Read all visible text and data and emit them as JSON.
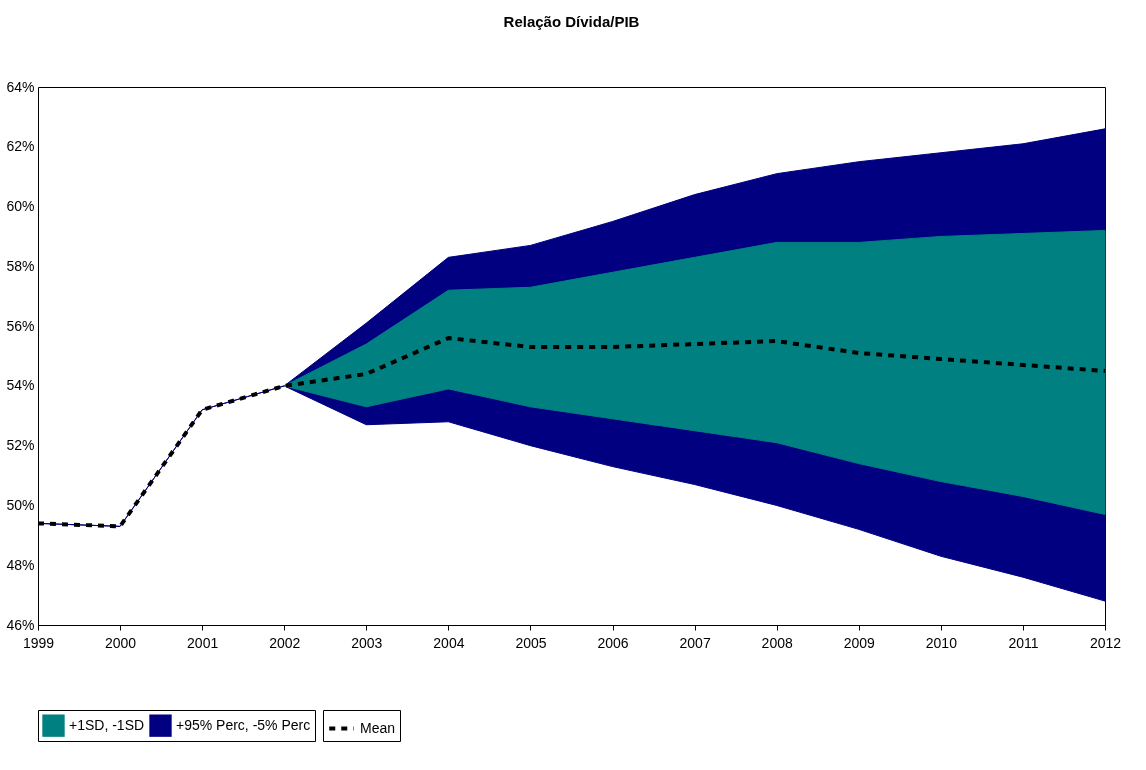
{
  "chart_data": {
    "type": "line",
    "title": "Relação Dívida/PIB",
    "x": [
      1999,
      2000,
      2001,
      2002,
      2003,
      2004,
      2005,
      2006,
      2007,
      2008,
      2009,
      2010,
      2011,
      2012
    ],
    "xlim": [
      1999,
      2012
    ],
    "xticks": [
      1999,
      2000,
      2001,
      2002,
      2003,
      2004,
      2005,
      2006,
      2007,
      2008,
      2009,
      2010,
      2011,
      2012
    ],
    "ylim": [
      46,
      64
    ],
    "yticks": [
      {
        "value": 46,
        "label": "46%"
      },
      {
        "value": 48,
        "label": "48%"
      },
      {
        "value": 50,
        "label": "50%"
      },
      {
        "value": 52,
        "label": "52%"
      },
      {
        "value": 54,
        "label": "54%"
      },
      {
        "value": 56,
        "label": "56%"
      },
      {
        "value": 58,
        "label": "58%"
      },
      {
        "value": 60,
        "label": "60%"
      },
      {
        "value": 62,
        "label": "62%"
      },
      {
        "value": 64,
        "label": "64%"
      }
    ],
    "series": [
      {
        "name": "+95% Perc, -5% Perc",
        "type": "area",
        "color": "#000080",
        "values": [
          null,
          null,
          null,
          null,
          null,
          null,
          null,
          null,
          null,
          null,
          null,
          null,
          null,
          null
        ],
        "lower": [
          49.4,
          49.3,
          53.2,
          54.0,
          52.7,
          52.8,
          52.0,
          51.3,
          50.7,
          50.0,
          49.2,
          48.3,
          47.6,
          46.8
        ],
        "upper": [
          49.4,
          49.3,
          53.2,
          54.0,
          56.1,
          58.3,
          58.7,
          59.5,
          60.4,
          61.1,
          61.5,
          61.8,
          62.1,
          62.6
        ]
      },
      {
        "name": "+1SD, -1SD",
        "type": "area",
        "color": "#008080",
        "values": [
          null,
          null,
          null,
          null,
          null,
          null,
          null,
          null,
          null,
          null,
          null,
          null,
          null,
          null
        ],
        "lower": [
          null,
          null,
          null,
          54.0,
          53.3,
          53.9,
          53.3,
          52.9,
          52.5,
          52.1,
          51.4,
          50.8,
          50.3,
          49.7
        ],
        "upper": [
          null,
          null,
          null,
          54.0,
          55.4,
          57.2,
          57.3,
          57.8,
          58.3,
          58.8,
          58.8,
          59.0,
          59.1,
          59.2
        ]
      },
      {
        "name": "Mean",
        "type": "line",
        "color": "#000000",
        "line_style": "dashed",
        "values": [
          49.4,
          49.3,
          53.2,
          54.0,
          54.4,
          55.6,
          55.3,
          55.3,
          55.4,
          55.5,
          55.1,
          54.9,
          54.7,
          54.5
        ]
      }
    ],
    "legend": "bottom",
    "grid": false
  }
}
